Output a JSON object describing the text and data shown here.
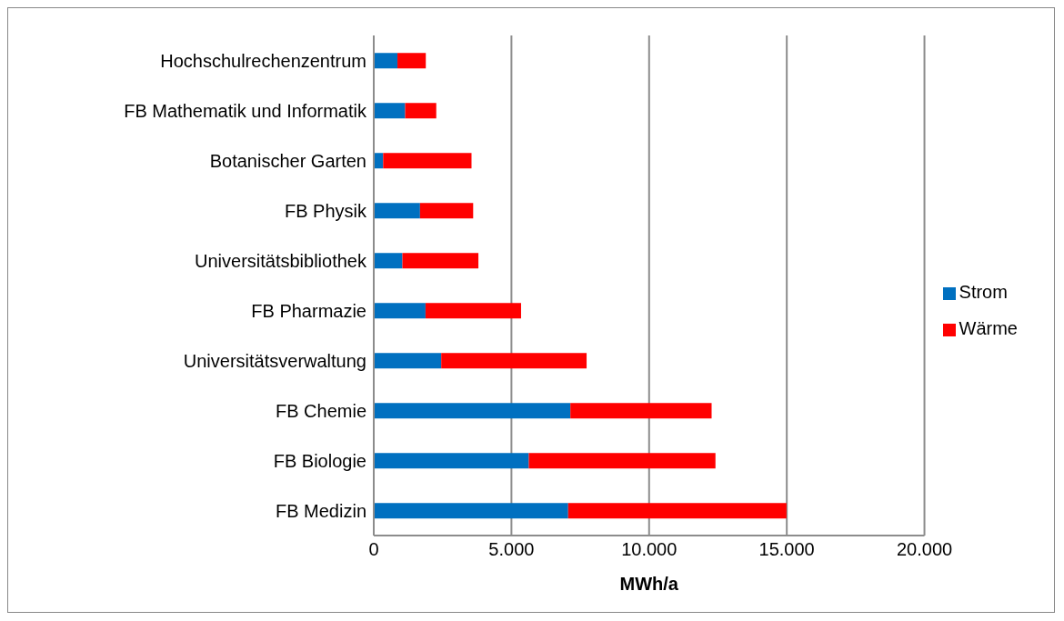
{
  "chart_data": {
    "type": "bar",
    "orientation": "horizontal",
    "stacked": true,
    "categories": [
      "Hochschulrechenzentrum",
      "FB Mathematik und Informatik",
      "Botanischer Garten",
      "FB Physik",
      "Universitätsbibliothek",
      "FB Pharmazie",
      "Universitätsverwaltung",
      "FB Chemie",
      "FB Biologie",
      "FB Medizin"
    ],
    "series": [
      {
        "name": "Strom",
        "color": "#0070c0",
        "values": [
          860,
          1140,
          340,
          1680,
          1040,
          1880,
          2450,
          7140,
          5630,
          7060
        ]
      },
      {
        "name": "Wärme",
        "color": "#ff0000",
        "values": [
          1030,
          1130,
          3210,
          1930,
          2760,
          3470,
          5280,
          5130,
          6780,
          7930
        ]
      }
    ],
    "xlabel": "MWh/a",
    "xlim": [
      0,
      20000
    ],
    "xticks": [
      0,
      {
        "value": 5000,
        "label": "5.000"
      },
      {
        "value": 10000,
        "label": "10.000"
      },
      {
        "value": 15000,
        "label": "15.000"
      },
      {
        "value": 20000,
        "label": "20.000"
      }
    ],
    "grid": "x",
    "legend": "right"
  }
}
